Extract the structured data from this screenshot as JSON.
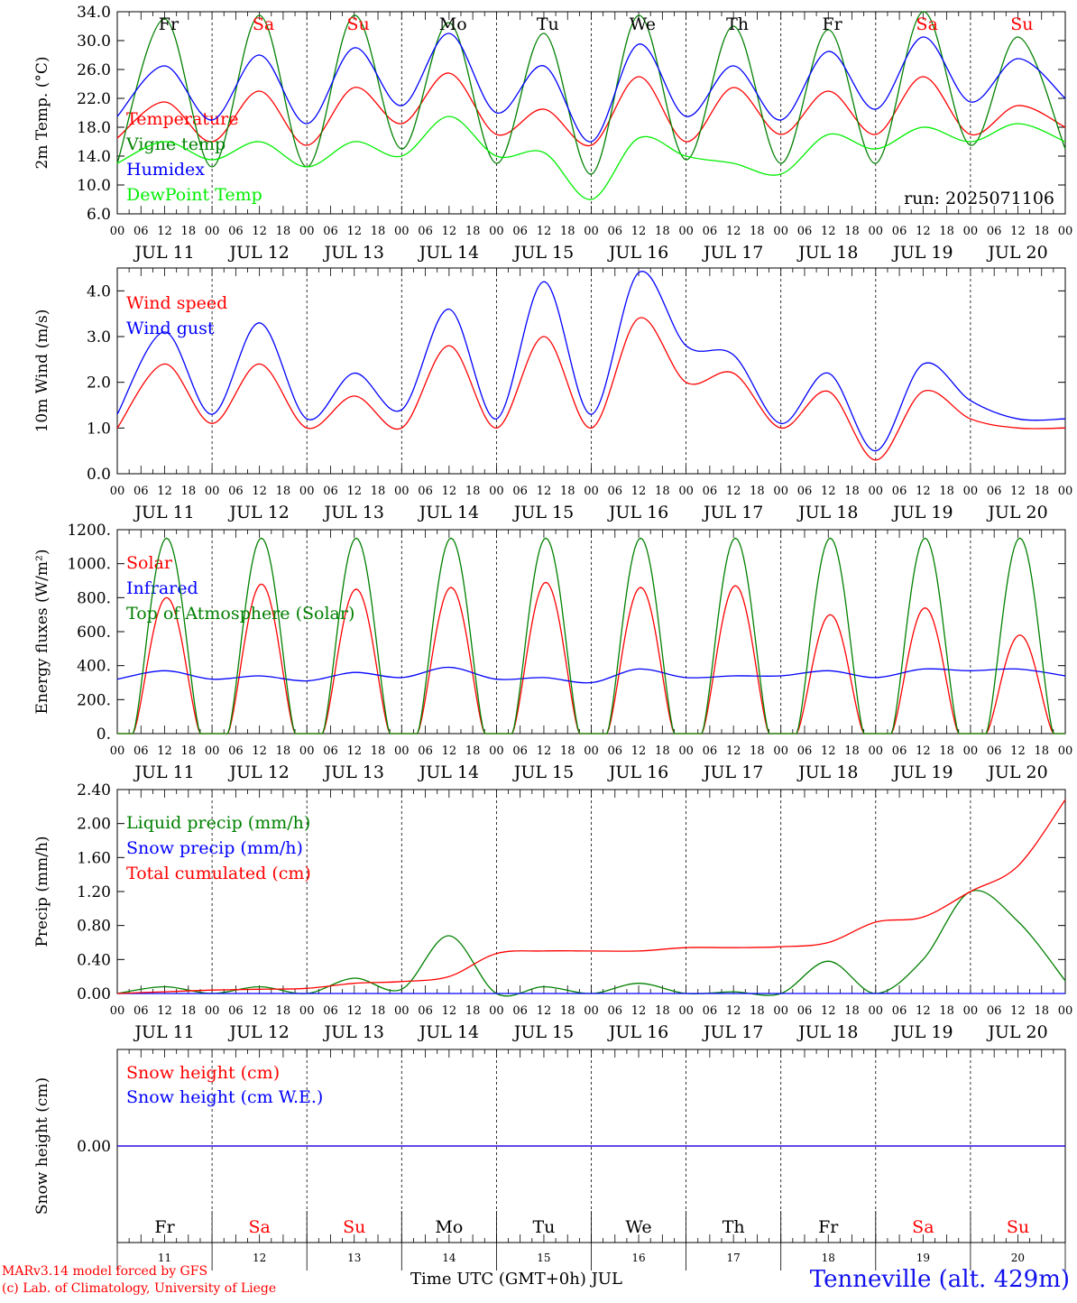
{
  "chart_data": [
    {
      "type": "line",
      "ylabel": "2m Temp. (°C)",
      "ylim": [
        6.0,
        34.0
      ],
      "yticks": [
        "6.0",
        "10.0",
        "14.0",
        "18.0",
        "22.0",
        "26.0",
        "30.0",
        "34.0"
      ],
      "ytick_values": [
        6,
        10,
        14,
        18,
        22,
        26,
        30,
        34
      ],
      "legend_placement": "left",
      "annotation": "run: 2025071106",
      "x_hours": [
        0,
        12,
        24,
        36,
        48,
        60,
        72,
        84,
        96,
        108,
        120,
        132,
        144,
        156,
        168,
        180,
        192,
        204,
        216,
        228,
        240
      ],
      "series": [
        {
          "name": "Temperature",
          "color": "#ff0000",
          "values": [
            16.5,
            21.5,
            16.0,
            23.0,
            15.5,
            23.5,
            18.5,
            25.5,
            17.0,
            20.5,
            15.5,
            25.0,
            16.0,
            23.5,
            17.0,
            23.0,
            17.0,
            25.0,
            17.0,
            21.0,
            18.0
          ]
        },
        {
          "name": "Vigne temp",
          "color": "#008000",
          "values": [
            13.0,
            33.0,
            12.5,
            33.5,
            12.5,
            33.5,
            15.0,
            32.5,
            13.0,
            31.0,
            11.5,
            33.5,
            13.5,
            32.0,
            13.0,
            31.5,
            13.0,
            34.0,
            15.5,
            30.5,
            15.0
          ]
        },
        {
          "name": "Humidex",
          "color": "#0000ff",
          "values": [
            19.5,
            26.5,
            19.0,
            28.0,
            18.5,
            29.0,
            21.0,
            31.0,
            20.0,
            26.5,
            16.0,
            29.5,
            19.5,
            26.5,
            19.0,
            28.5,
            20.5,
            30.5,
            21.5,
            27.5,
            22.0
          ]
        },
        {
          "name": "DewPoint Temp",
          "color": "#00ee00",
          "values": [
            13.0,
            16.0,
            13.5,
            16.0,
            12.5,
            16.0,
            14.0,
            19.5,
            14.0,
            14.5,
            8.0,
            16.5,
            14.0,
            13.0,
            11.5,
            17.0,
            15.0,
            18.0,
            16.0,
            18.5,
            16.0
          ]
        }
      ]
    },
    {
      "type": "line",
      "ylabel": "10m Wind (m/s)",
      "ylim": [
        0.0,
        4.5
      ],
      "yticks": [
        "0.0",
        "1.0",
        "2.0",
        "3.0",
        "4.0"
      ],
      "ytick_values": [
        0,
        1,
        2,
        3,
        4
      ],
      "legend_placement": "top-left",
      "x_hours": [
        0,
        12,
        24,
        36,
        48,
        60,
        72,
        84,
        96,
        108,
        120,
        132,
        144,
        156,
        168,
        180,
        192,
        204,
        216,
        228,
        240
      ],
      "series": [
        {
          "name": "Wind speed",
          "color": "#ff0000",
          "values": [
            1.0,
            2.4,
            1.1,
            2.4,
            1.0,
            1.7,
            1.0,
            2.8,
            1.0,
            3.0,
            1.0,
            3.4,
            2.0,
            2.2,
            1.0,
            1.8,
            0.3,
            1.8,
            1.2,
            1.0,
            1.0
          ]
        },
        {
          "name": "Wind gust",
          "color": "#0000ff",
          "values": [
            1.3,
            3.1,
            1.3,
            3.3,
            1.2,
            2.2,
            1.4,
            3.6,
            1.2,
            4.2,
            1.3,
            4.4,
            2.8,
            2.6,
            1.1,
            2.2,
            0.5,
            2.4,
            1.6,
            1.2,
            1.2
          ]
        }
      ]
    },
    {
      "type": "line",
      "ylabel": "Energy fluxes (W/m²)",
      "ylim": [
        0,
        1200
      ],
      "yticks": [
        "0.",
        "200.",
        "400.",
        "600.",
        "800.",
        "1000.",
        "1200."
      ],
      "ytick_values": [
        0,
        200,
        400,
        600,
        800,
        1000,
        1200
      ],
      "legend_placement": "top-left",
      "x_hours": [
        0,
        12,
        24,
        36,
        48,
        60,
        72,
        84,
        96,
        108,
        120,
        132,
        144,
        156,
        168,
        180,
        192,
        204,
        216,
        228,
        240
      ],
      "solar_noon_peaks": [
        800,
        880,
        850,
        860,
        890,
        860,
        870,
        700,
        740,
        580
      ],
      "toa_peak": 1150,
      "series": [
        {
          "name": "Solar",
          "color": "#ff0000",
          "values": [
            0,
            800,
            0,
            880,
            0,
            850,
            0,
            860,
            0,
            890,
            0,
            860,
            0,
            870,
            0,
            700,
            0,
            740,
            0,
            580,
            0
          ]
        },
        {
          "name": "Infrared",
          "color": "#0000ff",
          "values": [
            320,
            370,
            320,
            340,
            310,
            360,
            330,
            390,
            320,
            330,
            300,
            380,
            330,
            340,
            340,
            370,
            330,
            380,
            370,
            380,
            340
          ]
        },
        {
          "name": "Top of Atmosphere (Solar)",
          "color": "#008000",
          "values": [
            0,
            1150,
            0,
            1150,
            0,
            1150,
            0,
            1150,
            0,
            1150,
            0,
            1150,
            0,
            1150,
            0,
            1150,
            0,
            1150,
            0,
            1150,
            0
          ]
        }
      ]
    },
    {
      "type": "line",
      "ylabel": "Precip (mm/h)",
      "ylim": [
        0.0,
        2.4
      ],
      "yticks": [
        "0.00",
        "0.40",
        "0.80",
        "1.20",
        "1.60",
        "2.00",
        "2.40"
      ],
      "ytick_values": [
        0,
        0.4,
        0.8,
        1.2,
        1.6,
        2.0,
        2.4
      ],
      "legend_placement": "top-left",
      "x_hours": [
        0,
        12,
        24,
        36,
        48,
        60,
        72,
        84,
        96,
        108,
        120,
        132,
        144,
        156,
        168,
        180,
        192,
        204,
        216,
        228,
        240
      ],
      "series": [
        {
          "name": "Liquid precip (mm/h)",
          "color": "#008000",
          "values": [
            0,
            0.08,
            0,
            0.08,
            0,
            0.18,
            0.05,
            0.68,
            0,
            0.08,
            0,
            0.12,
            0,
            0.02,
            0,
            0.38,
            0,
            0.4,
            1.2,
            0.85,
            0.15
          ]
        },
        {
          "name": "Snow precip (mm/h)",
          "color": "#0000ff",
          "values": [
            0,
            0,
            0,
            0,
            0,
            0,
            0,
            0,
            0,
            0,
            0,
            0,
            0,
            0,
            0,
            0,
            0,
            0,
            0,
            0,
            0
          ]
        },
        {
          "name": "Total cumulated (cm)",
          "color": "#ff0000",
          "values": [
            0,
            0.02,
            0.04,
            0.05,
            0.06,
            0.12,
            0.14,
            0.2,
            0.47,
            0.5,
            0.5,
            0.5,
            0.54,
            0.54,
            0.55,
            0.6,
            0.84,
            0.9,
            1.2,
            1.5,
            2.28
          ]
        }
      ]
    },
    {
      "type": "line",
      "ylabel": "Snow height (cm)",
      "ylim": [
        -0.03,
        0.03
      ],
      "yticks": [
        "0.00"
      ],
      "ytick_values": [
        0
      ],
      "legend_placement": "top-left",
      "x_hours": [
        0,
        240
      ],
      "series": [
        {
          "name": "Snow height (cm)",
          "color": "#ff0000",
          "values": [
            0,
            0
          ]
        },
        {
          "name": "Snow height (cm W.E.)",
          "color": "#0000ff",
          "values": [
            0,
            0
          ]
        }
      ]
    }
  ],
  "x_axis": {
    "hour_labels": [
      "00",
      "06",
      "12",
      "18"
    ],
    "final_hour_label": "00",
    "date_labels": [
      "JUL 11",
      "JUL 12",
      "JUL 13",
      "JUL 14",
      "JUL 15",
      "JUL 16",
      "JUL 17",
      "JUL 18",
      "JUL 19",
      "JUL 20"
    ],
    "day_numbers": [
      "11",
      "12",
      "13",
      "14",
      "15",
      "16",
      "17",
      "18",
      "19",
      "20"
    ]
  },
  "weekdays": [
    {
      "label": "Fr",
      "color": "#000000"
    },
    {
      "label": "Sa",
      "color": "#ff0000"
    },
    {
      "label": "Su",
      "color": "#ff0000"
    },
    {
      "label": "Mo",
      "color": "#000000"
    },
    {
      "label": "Tu",
      "color": "#000000"
    },
    {
      "label": "We",
      "color": "#000000"
    },
    {
      "label": "Th",
      "color": "#000000"
    },
    {
      "label": "Fr",
      "color": "#000000"
    },
    {
      "label": "Sa",
      "color": "#ff0000"
    },
    {
      "label": "Su",
      "color": "#ff0000"
    }
  ],
  "footer": {
    "model_line": "MARv3.14 model forced by GFS",
    "credit_line": "(c) Lab. of Climatology, University of Liege",
    "axis_title": "Time UTC (GMT+0h) JUL",
    "station": "Tenneville (alt. 429m)"
  }
}
